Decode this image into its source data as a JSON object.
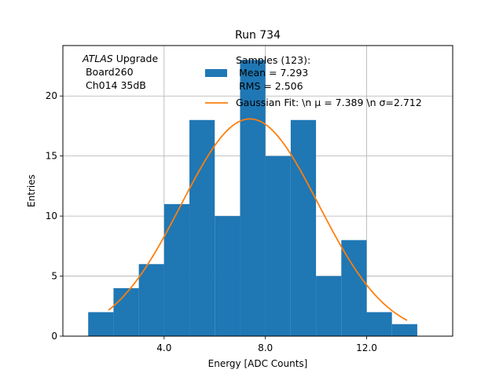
{
  "chart_data": {
    "type": "bar",
    "title": "Run 734",
    "xlabel": "Energy [ADC Counts]",
    "ylabel": "Entries",
    "xlim": [
      0,
      15.4
    ],
    "ylim": [
      0,
      24.2
    ],
    "grid": true,
    "x_ticks": [
      4.0,
      8.0,
      12.0
    ],
    "x_tick_labels": [
      "4.0",
      "8.0",
      "12.0"
    ],
    "y_ticks": [
      0,
      5,
      10,
      15,
      20
    ],
    "y_tick_labels": [
      "0",
      "5",
      "10",
      "15",
      "20"
    ],
    "histogram": {
      "name": "Samples (123):",
      "bin_edges": [
        1.0,
        2.0,
        3.0,
        4.0,
        5.0,
        6.0,
        7.0,
        8.0,
        9.0,
        10.0,
        11.0,
        12.0,
        13.0,
        14.0
      ],
      "counts": [
        2,
        4,
        6,
        11,
        18,
        10,
        23,
        15,
        18,
        5,
        8,
        2,
        1
      ]
    },
    "gaussian_fit": {
      "name": "Gaussian Fit",
      "mu": 7.389,
      "sigma": 2.712,
      "x_range": [
        1.8,
        13.6
      ]
    },
    "legend": {
      "placement": "top-right",
      "samples_lines": [
        "Samples (123):",
        " Mean = 7.293",
        " RMS = 2.506"
      ],
      "fit_label": "Gaussian Fit: \\n μ = 7.389 \\n σ=2.712"
    },
    "annotation": {
      "placement": "top-left",
      "italic": "ATLAS",
      "line1_rest": " Upgrade",
      "line2": " Board260",
      "line3": " Ch014 35dB"
    }
  },
  "colors": {
    "bars": "#1f77b4",
    "fit": "#ff7f0e",
    "grid": "#b0b0b0",
    "axes": "#000000"
  }
}
